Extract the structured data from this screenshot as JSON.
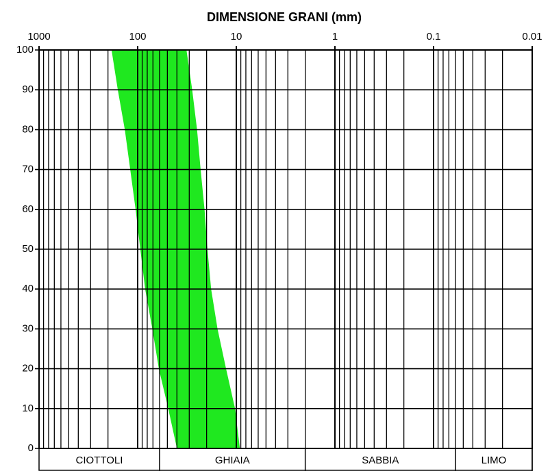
{
  "chart_data": {
    "type": "area",
    "title": "DIMENSIONE GRANI (mm)",
    "xlim": [
      1000,
      0.01
    ],
    "xlog": true,
    "xticks": [
      1000,
      100,
      10,
      1,
      0.1,
      0.01
    ],
    "xminor": [
      900,
      800,
      700,
      600,
      500,
      400,
      300,
      200,
      90,
      80,
      70,
      60,
      50,
      40,
      30,
      20,
      9,
      8,
      7,
      6,
      5,
      4,
      3,
      2,
      0.9,
      0.8,
      0.7,
      0.6,
      0.5,
      0.4,
      0.3,
      0.2,
      0.09,
      0.08,
      0.07,
      0.06,
      0.05,
      0.04,
      0.03,
      0.02
    ],
    "ylim": [
      0,
      100
    ],
    "yticks": [
      0,
      10,
      20,
      30,
      40,
      50,
      60,
      70,
      80,
      90,
      100
    ],
    "grid": true,
    "color": "#1fe81f",
    "series": [
      {
        "x": [
          184,
          159,
          135,
          119,
          105,
          94,
          84,
          71,
          61,
          49,
          40
        ],
        "values": [
          100,
          90,
          80,
          70,
          60,
          50,
          40,
          30,
          20,
          10,
          0
        ]
      },
      {
        "x": [
          32,
          28,
          25,
          23,
          21,
          19.6,
          18,
          15.5,
          12.7,
          10.3,
          9.2
        ],
        "values": [
          100,
          90,
          80,
          70,
          60,
          50,
          40,
          30,
          20,
          10,
          0
        ]
      }
    ],
    "bands": [
      {
        "label": "CIOTTOLI",
        "from": 1000,
        "to": 60
      },
      {
        "label": "GHIAIA",
        "from": 60,
        "to": 2
      },
      {
        "label": "SABBIA",
        "from": 2,
        "to": 0.06
      },
      {
        "label": "LIMO",
        "from": 0.06,
        "to": 0.01
      }
    ]
  }
}
